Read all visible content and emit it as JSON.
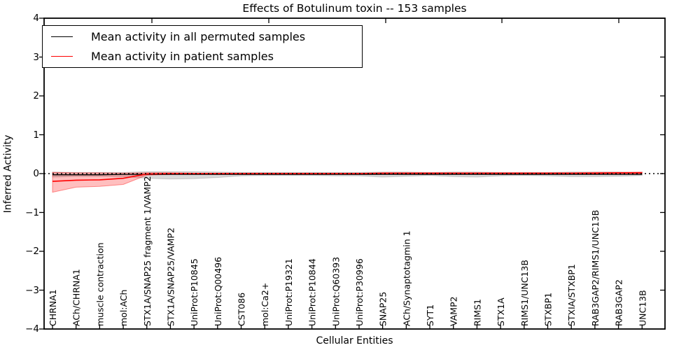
{
  "chart_data": {
    "type": "line",
    "title": "Effects of Botulinum toxin -- 153 samples",
    "xlabel": "Cellular Entities",
    "ylabel": "Inferred Activity",
    "ylim": [
      -4,
      4
    ],
    "yticks": [
      4,
      3,
      2,
      1,
      0,
      -1,
      -2,
      -3,
      -4
    ],
    "grid": false,
    "zero_reference_line": {
      "y": 0,
      "style": "dotted",
      "color": "#000000"
    },
    "categories": [
      "CHRNA1",
      "ACh/CHRNA1",
      "muscle contraction",
      "mol:ACh",
      "STX1A/SNAP25 fragment 1/VAMP2",
      "STX1A/SNAP25/VAMP2",
      "UniProt:P10845",
      "UniProt:Q00496",
      "CST086",
      "mol:Ca2+",
      "UniProt:P19321",
      "UniProt:P10844",
      "UniProt:Q60393",
      "UniProt:P30996",
      "SNAP25",
      "ACh/Synaptotagmin 1",
      "SYT1",
      "VAMP2",
      "RIMS1",
      "STX1A",
      "RIMS1/UNC13B",
      "STXBP1",
      "STXIA/STXBP1",
      "RAB3GAP2/RIMS1/UNC13B",
      "RAB3GAP2",
      "UNC13B"
    ],
    "series": [
      {
        "name": "Mean activity in all permuted samples",
        "color": "#000000",
        "values": [
          -0.03,
          -0.03,
          -0.03,
          -0.02,
          -0.02,
          -0.02,
          -0.02,
          -0.02,
          -0.02,
          -0.02,
          -0.02,
          -0.02,
          -0.02,
          -0.02,
          -0.02,
          -0.02,
          -0.02,
          -0.02,
          -0.02,
          -0.02,
          -0.02,
          -0.02,
          -0.02,
          -0.02,
          -0.02,
          -0.02
        ],
        "band_upper": [
          0.04,
          0.03,
          0.03,
          0.03,
          0.05,
          0.05,
          0.05,
          0.04,
          0.03,
          0.03,
          0.03,
          0.03,
          0.03,
          0.03,
          0.04,
          0.04,
          0.03,
          0.04,
          0.04,
          0.03,
          0.03,
          0.03,
          0.04,
          0.04,
          0.04,
          0.03
        ],
        "band_lower": [
          -0.09,
          -0.07,
          -0.07,
          -0.08,
          -0.12,
          -0.14,
          -0.13,
          -0.1,
          -0.06,
          -0.05,
          -0.05,
          -0.05,
          -0.06,
          -0.06,
          -0.09,
          -0.07,
          -0.05,
          -0.08,
          -0.09,
          -0.06,
          -0.05,
          -0.06,
          -0.08,
          -0.08,
          -0.07,
          -0.05
        ]
      },
      {
        "name": "Mean activity in patient samples",
        "color": "#ff0000",
        "values": [
          -0.2,
          -0.17,
          -0.16,
          -0.12,
          -0.01,
          0.0,
          0.0,
          0.0,
          0.0,
          0.0,
          0.0,
          0.0,
          0.0,
          0.0,
          0.01,
          0.01,
          0.01,
          0.01,
          0.01,
          0.01,
          0.01,
          0.01,
          0.01,
          0.01,
          0.02,
          0.02
        ],
        "band_upper": [
          0.03,
          0.02,
          0.02,
          0.01,
          0.02,
          0.02,
          0.01,
          0.01,
          0.01,
          0.01,
          0.01,
          0.01,
          0.01,
          0.01,
          0.02,
          0.02,
          0.02,
          0.02,
          0.02,
          0.02,
          0.02,
          0.02,
          0.02,
          0.03,
          0.03,
          0.04
        ],
        "band_lower": [
          -0.48,
          -0.35,
          -0.33,
          -0.28,
          -0.04,
          -0.02,
          -0.01,
          -0.01,
          -0.01,
          -0.01,
          -0.01,
          -0.01,
          -0.01,
          -0.01,
          -0.01,
          -0.01,
          -0.01,
          -0.01,
          -0.01,
          -0.01,
          -0.01,
          -0.01,
          -0.01,
          -0.01,
          0.0,
          0.0
        ]
      }
    ],
    "legend": {
      "position": "upper left",
      "entries": [
        {
          "label": "Mean activity in all permuted samples",
          "color": "#000000"
        },
        {
          "label": "Mean activity in patient samples",
          "color": "#ff0000"
        }
      ]
    }
  }
}
